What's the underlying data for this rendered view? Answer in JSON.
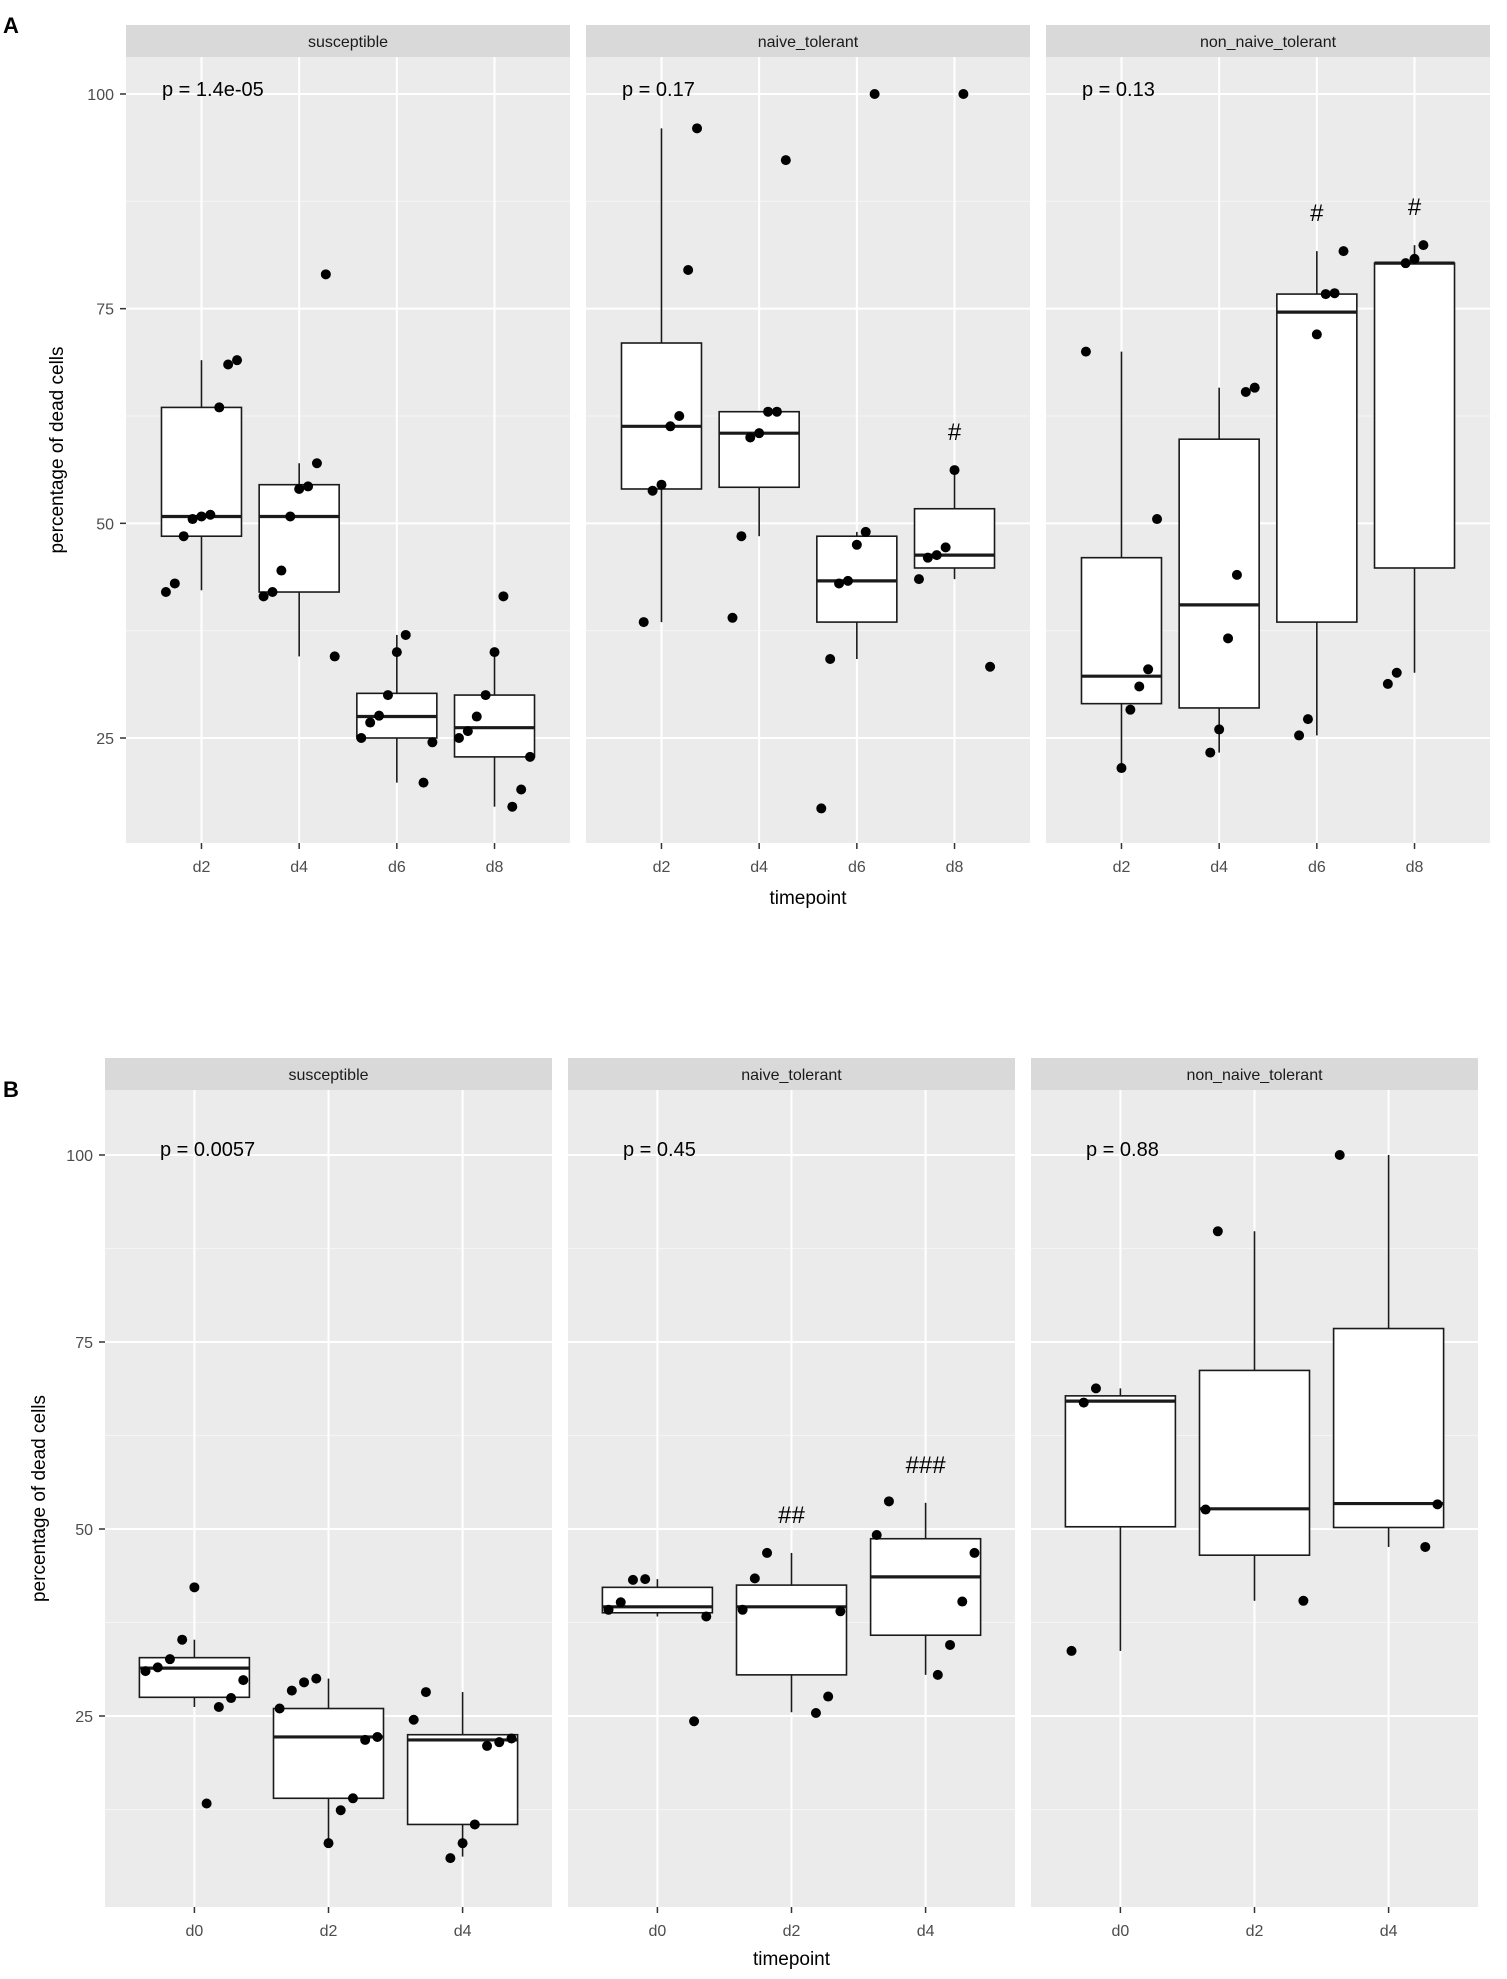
{
  "chart_data": [
    {
      "type": "boxplot",
      "panel_label": "A",
      "xlabel": "timepoint",
      "ylabel": "percentage of dead cells",
      "ylim": [
        13,
        105
      ],
      "y_ticks": [
        25,
        50,
        75,
        100
      ],
      "grid": true,
      "categories": [
        "d2",
        "d4",
        "d6",
        "d8"
      ],
      "facets": [
        {
          "name": "susceptible",
          "p_value": "p = 1.4e-05",
          "groups": [
            {
              "category": "d2",
              "q1": 48.5,
              "median": 50.8,
              "q3": 63.5,
              "whisker_low": 42.2,
              "whisker_high": 69,
              "points": [
                42,
                43,
                48.5,
                50.5,
                50.8,
                51,
                63.5,
                68.5,
                69
              ],
              "annotation": ""
            },
            {
              "category": "d4",
              "q1": 42,
              "median": 50.8,
              "q3": 54.5,
              "whisker_low": 34.5,
              "whisker_high": 57,
              "points": [
                34.5,
                41.5,
                42,
                44.5,
                50.8,
                54,
                54.3,
                57,
                79
              ],
              "annotation": ""
            },
            {
              "category": "d6",
              "q1": 25,
              "median": 27.5,
              "q3": 30.2,
              "whisker_low": 19.8,
              "whisker_high": 37,
              "points": [
                19.8,
                24.5,
                25,
                26.8,
                27.6,
                30,
                35,
                37
              ],
              "annotation": ""
            },
            {
              "category": "d8",
              "q1": 22.8,
              "median": 26.2,
              "q3": 30,
              "whisker_low": 17,
              "whisker_high": 35,
              "points": [
                17,
                19,
                22.8,
                25,
                25.8,
                27.5,
                30,
                35,
                41.5
              ],
              "annotation": ""
            }
          ]
        },
        {
          "name": "naive_tolerant",
          "p_value": "p = 0.17",
          "groups": [
            {
              "category": "d2",
              "q1": 54,
              "median": 61.3,
              "q3": 71,
              "whisker_low": 38.5,
              "whisker_high": 96,
              "points": [
                38.5,
                53.8,
                54.5,
                61.3,
                62.5,
                79.5,
                96
              ],
              "annotation": ""
            },
            {
              "category": "d4",
              "q1": 54.2,
              "median": 60.5,
              "q3": 63,
              "whisker_low": 48.5,
              "whisker_high": 63,
              "points": [
                39,
                48.5,
                60,
                60.5,
                63,
                63,
                92.3
              ],
              "annotation": ""
            },
            {
              "category": "d6",
              "q1": 38.5,
              "median": 43.3,
              "q3": 48.5,
              "whisker_low": 34.2,
              "whisker_high": 49,
              "points": [
                16.8,
                34.2,
                43,
                43.3,
                47.5,
                49,
                100
              ],
              "annotation": ""
            },
            {
              "category": "d8",
              "q1": 44.8,
              "median": 46.3,
              "q3": 51.7,
              "whisker_low": 43.5,
              "whisker_high": 56.2,
              "points": [
                33.3,
                43.5,
                46,
                46.3,
                47.2,
                56.2,
                100
              ],
              "annotation": "#"
            }
          ]
        },
        {
          "name": "non_naive_tolerant",
          "p_value": "p = 0.13",
          "groups": [
            {
              "category": "d2",
              "q1": 29,
              "median": 32.2,
              "q3": 46,
              "whisker_low": 21.5,
              "whisker_high": 70,
              "points": [
                21.5,
                28.3,
                31,
                33,
                50.5,
                70
              ],
              "annotation": ""
            },
            {
              "category": "d4",
              "q1": 28.5,
              "median": 40.5,
              "q3": 59.8,
              "whisker_low": 23.3,
              "whisker_high": 65.8,
              "points": [
                23.3,
                26,
                36.6,
                44,
                65.3,
                65.8
              ],
              "annotation": ""
            },
            {
              "category": "d6",
              "q1": 38.5,
              "median": 74.6,
              "q3": 76.7,
              "whisker_low": 25.3,
              "whisker_high": 81.7,
              "points": [
                25.3,
                27.2,
                72,
                76.7,
                76.8,
                81.7
              ],
              "annotation": "#"
            },
            {
              "category": "d8",
              "q1": 44.8,
              "median": 80.3,
              "q3": 80.3,
              "whisker_low": 32.6,
              "whisker_high": 82.4,
              "points": [
                31.3,
                32.6,
                80.3,
                80.8,
                82.4
              ],
              "annotation": "#"
            }
          ]
        }
      ]
    },
    {
      "type": "boxplot",
      "panel_label": "B",
      "xlabel": "timepoint",
      "ylabel": "percentage of dead cells",
      "ylim": [
        4,
        105
      ],
      "y_ticks": [
        25,
        50,
        75,
        100
      ],
      "grid": true,
      "categories": [
        "d0",
        "d2",
        "d4"
      ],
      "facets": [
        {
          "name": "susceptible",
          "p_value": "p = 0.0057",
          "groups": [
            {
              "category": "d0",
              "q1": 27.5,
              "median": 31.4,
              "q3": 32.8,
              "whisker_low": 26.2,
              "whisker_high": 35.2,
              "points": [
                13.3,
                26.2,
                27.4,
                29.8,
                31,
                31.5,
                32.6,
                35.2,
                42.2
              ],
              "annotation": ""
            },
            {
              "category": "d2",
              "q1": 14,
              "median": 22.2,
              "q3": 26,
              "whisker_low": 8,
              "whisker_high": 30,
              "points": [
                8,
                12.4,
                14,
                21.8,
                22.2,
                26,
                28.4,
                29.5,
                30
              ],
              "annotation": ""
            },
            {
              "category": "d4",
              "q1": 10.5,
              "median": 21.8,
              "q3": 22.5,
              "whisker_low": 6.2,
              "whisker_high": 28.2,
              "points": [
                6,
                8,
                10.5,
                21,
                21.5,
                22,
                24.5,
                28.2
              ],
              "annotation": ""
            }
          ]
        },
        {
          "name": "naive_tolerant",
          "p_value": "p = 0.45",
          "groups": [
            {
              "category": "d0",
              "q1": 38.8,
              "median": 39.6,
              "q3": 42.2,
              "whisker_low": 38.3,
              "whisker_high": 43.3,
              "points": [
                24.3,
                38.3,
                39.2,
                40.2,
                43.2,
                43.3
              ],
              "annotation": ""
            },
            {
              "category": "d2",
              "q1": 30.5,
              "median": 39.6,
              "q3": 42.5,
              "whisker_low": 25.5,
              "whisker_high": 46.8,
              "points": [
                25.4,
                27.6,
                39,
                39.2,
                43.4,
                46.8
              ],
              "annotation": "##"
            },
            {
              "category": "d4",
              "q1": 35.8,
              "median": 43.6,
              "q3": 48.7,
              "whisker_low": 30.5,
              "whisker_high": 53.5,
              "points": [
                30.5,
                34.5,
                40.3,
                46.8,
                49.2,
                53.7
              ],
              "annotation": "###"
            }
          ]
        },
        {
          "name": "non_naive_tolerant",
          "p_value": "p = 0.88",
          "groups": [
            {
              "category": "d0",
              "q1": 50.3,
              "median": 67.1,
              "q3": 67.8,
              "whisker_low": 33.7,
              "whisker_high": 68.8,
              "points": [
                33.7,
                66.9,
                68.8
              ],
              "annotation": ""
            },
            {
              "category": "d2",
              "q1": 46.5,
              "median": 52.7,
              "q3": 71.2,
              "whisker_low": 40.4,
              "whisker_high": 89.8,
              "points": [
                40.4,
                52.6,
                89.8
              ],
              "annotation": ""
            },
            {
              "category": "d4",
              "q1": 50.2,
              "median": 53.4,
              "q3": 76.8,
              "whisker_low": 47.6,
              "whisker_high": 100,
              "points": [
                47.6,
                53.3,
                100
              ],
              "annotation": ""
            }
          ]
        }
      ]
    }
  ]
}
